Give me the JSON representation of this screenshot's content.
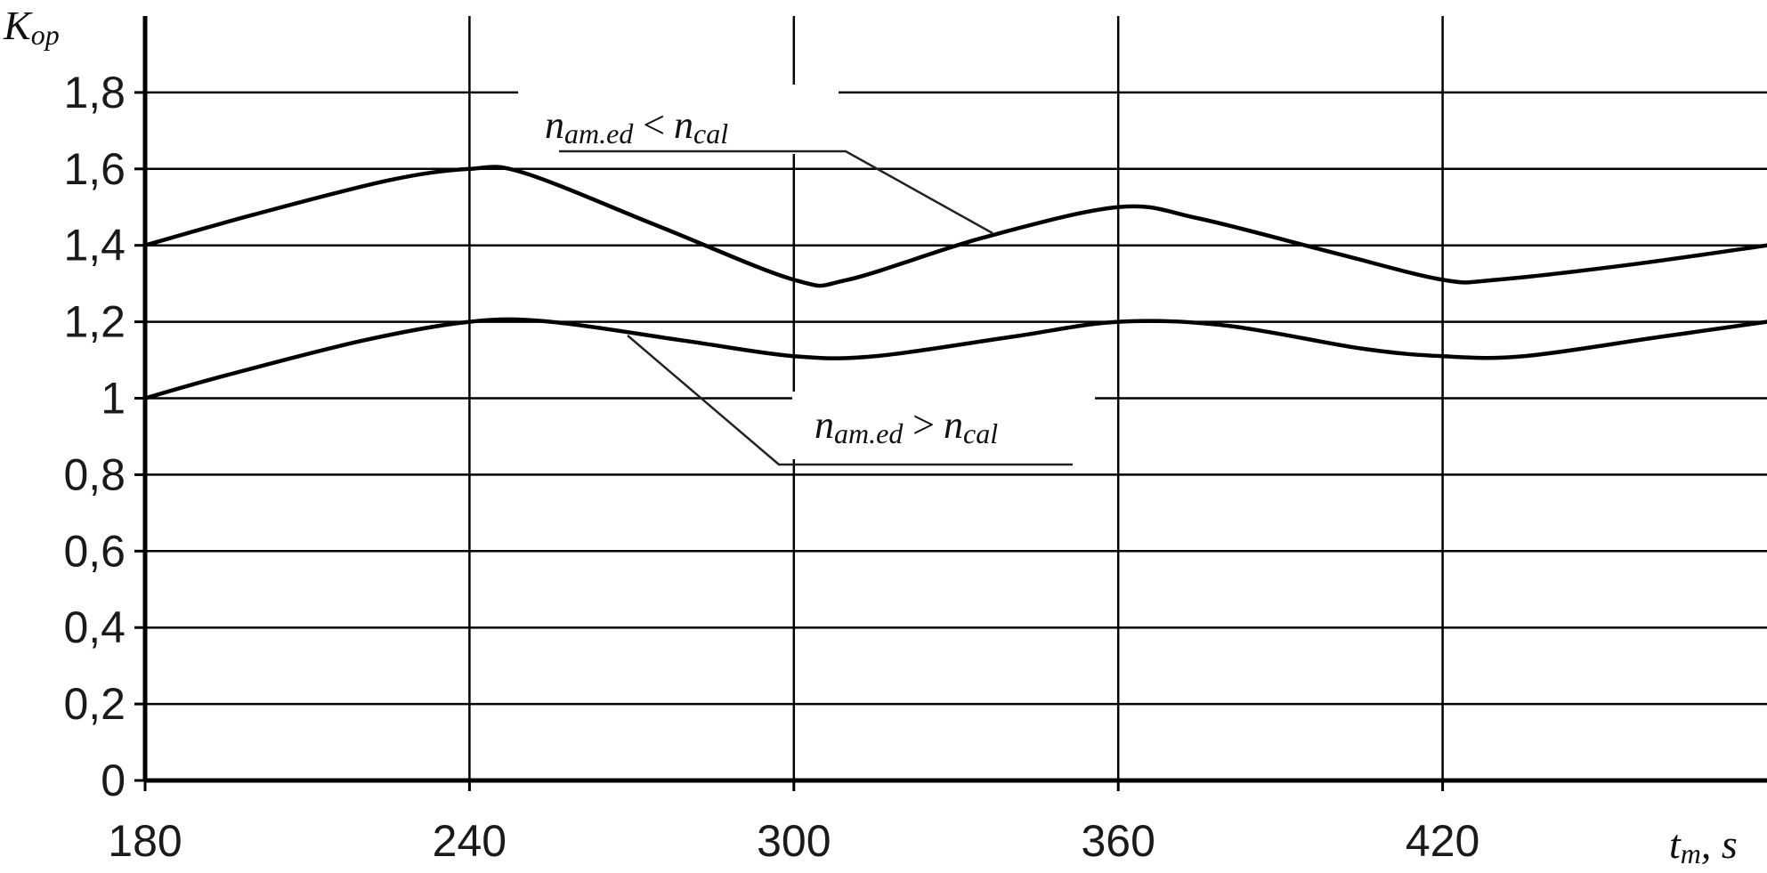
{
  "chart_data": {
    "type": "line",
    "title": "",
    "ylabel": "K",
    "ylabel_sub": "op",
    "xlabel": "t",
    "xlabel_sub": "m",
    "xlabel_unit": ", s",
    "x_ticks": [
      180,
      240,
      300,
      360,
      420
    ],
    "xlim": [
      180,
      480
    ],
    "y_ticks": [
      "0",
      "0,2",
      "0,4",
      "0,6",
      "0,8",
      "1",
      "1,2",
      "1,4",
      "1,6",
      "1,8"
    ],
    "ylim": [
      0,
      2
    ],
    "grid": true,
    "series": [
      {
        "x": [
          180,
          200,
          225,
          240,
          250,
          275,
          300,
          310,
          335,
          360,
          375,
          400,
          420,
          430,
          455,
          480
        ],
        "y": [
          1.4,
          1.48,
          1.57,
          1.6,
          1.59,
          1.45,
          1.31,
          1.31,
          1.42,
          1.5,
          1.47,
          1.38,
          1.31,
          1.31,
          1.35,
          1.4
        ]
      },
      {
        "x": [
          180,
          195,
          220,
          240,
          255,
          280,
          300,
          315,
          340,
          360,
          380,
          405,
          420,
          435,
          460,
          480
        ],
        "y": [
          1.0,
          1.06,
          1.15,
          1.2,
          1.2,
          1.15,
          1.11,
          1.11,
          1.16,
          1.2,
          1.19,
          1.13,
          1.11,
          1.11,
          1.16,
          1.2
        ]
      }
    ],
    "annotations": [
      {
        "lhs_main": "n",
        "lhs_sub": "am.ed",
        "operator": "<",
        "rhs_main": "n",
        "rhs_sub": "cal",
        "series_index": 0
      },
      {
        "lhs_main": "n",
        "lhs_sub": "am.ed",
        "operator": ">",
        "rhs_main": "n",
        "rhs_sub": "cal",
        "series_index": 1
      }
    ]
  }
}
